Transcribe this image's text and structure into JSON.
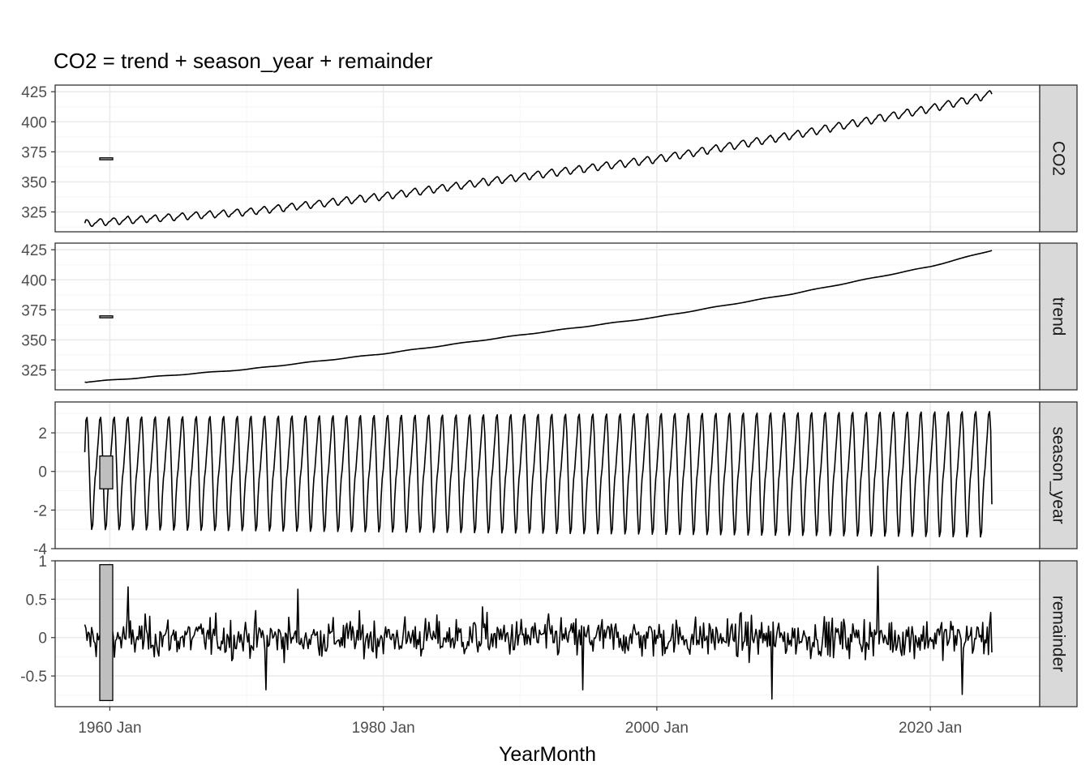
{
  "chart_data": {
    "type": "line",
    "title": "CO2 = trend + season_year + remainder",
    "xlabel": "YearMonth",
    "x_range": [
      "1956-01",
      "2028-01"
    ],
    "x_ticks": [
      {
        "date": "1960-01",
        "label": "1960 Jan"
      },
      {
        "date": "1980-01",
        "label": "1980 Jan"
      },
      {
        "date": "2000-01",
        "label": "2000 Jan"
      },
      {
        "date": "2020-01",
        "label": "2020 Jan"
      }
    ],
    "series_start": "1958-03",
    "series_end": "2024-07",
    "grid": true,
    "colors": {
      "line": "#000000",
      "panel_border": "#333333",
      "grid_major": "#ebebeb",
      "grid_minor": "#f5f5f5",
      "strip_fill": "#d9d9d9",
      "scale_bar_fill": "#bfbfbf"
    },
    "panels": [
      {
        "name": "CO2",
        "ylim": [
          308.5,
          430.5
        ],
        "y_ticks": [
          325,
          350,
          375,
          400,
          425
        ],
        "scale_bar": [
          368.4,
          370.0
        ],
        "pattern": "trend_plus_season",
        "endpoints": {
          "first": 315.7,
          "last": 423.0
        },
        "anchors": [
          {
            "x": "1960-01",
            "y": 317
          },
          {
            "x": "1970-01",
            "y": 325
          },
          {
            "x": "1980-01",
            "y": 338
          },
          {
            "x": "1990-01",
            "y": 354
          },
          {
            "x": "2000-01",
            "y": 369
          },
          {
            "x": "2010-01",
            "y": 389
          },
          {
            "x": "2020-01",
            "y": 411
          },
          {
            "x": "2024-07",
            "y": 423
          }
        ]
      },
      {
        "name": "trend",
        "ylim": [
          308.5,
          430.5
        ],
        "y_ticks": [
          325,
          350,
          375,
          400,
          425
        ],
        "scale_bar": [
          368.4,
          370.0
        ],
        "pattern": "trend",
        "endpoints": {
          "first": 315.0,
          "last": 424.5
        },
        "anchors": [
          {
            "x": "1960-01",
            "y": 316.5
          },
          {
            "x": "1970-01",
            "y": 325.5
          },
          {
            "x": "1980-01",
            "y": 338.5
          },
          {
            "x": "1990-01",
            "y": 354
          },
          {
            "x": "2000-01",
            "y": 369
          },
          {
            "x": "2010-01",
            "y": 388.5
          },
          {
            "x": "2020-01",
            "y": 411
          },
          {
            "x": "2024-07",
            "y": 424.5
          }
        ]
      },
      {
        "name": "season_year",
        "ylim": [
          -4,
          3.6
        ],
        "y_ticks": [
          -4,
          -2,
          0,
          2
        ],
        "scale_bar": [
          -0.9,
          0.8
        ],
        "pattern": "seasonal",
        "endpoints": {
          "first": 1.0,
          "last": -1.7
        },
        "amplitude_range": {
          "max_start": 2.8,
          "max_end": 3.1,
          "min_start": -3.0,
          "min_end": -3.4
        }
      },
      {
        "name": "remainder",
        "ylim": [
          -0.9,
          1.0
        ],
        "y_ticks": [
          -0.5,
          0.0,
          0.5,
          1.0
        ],
        "scale_bar": [
          -0.82,
          0.95
        ],
        "pattern": "noise",
        "spread": 0.18,
        "extremes": [
          {
            "x": "1961-05",
            "y": 0.66
          },
          {
            "x": "1971-06",
            "y": -0.68
          },
          {
            "x": "1973-10",
            "y": 0.63
          },
          {
            "x": "1987-04",
            "y": 0.4
          },
          {
            "x": "1994-08",
            "y": -0.68
          },
          {
            "x": "2008-06",
            "y": -0.8
          },
          {
            "x": "2016-03",
            "y": 0.93
          },
          {
            "x": "2022-05",
            "y": -0.74
          }
        ]
      }
    ]
  }
}
